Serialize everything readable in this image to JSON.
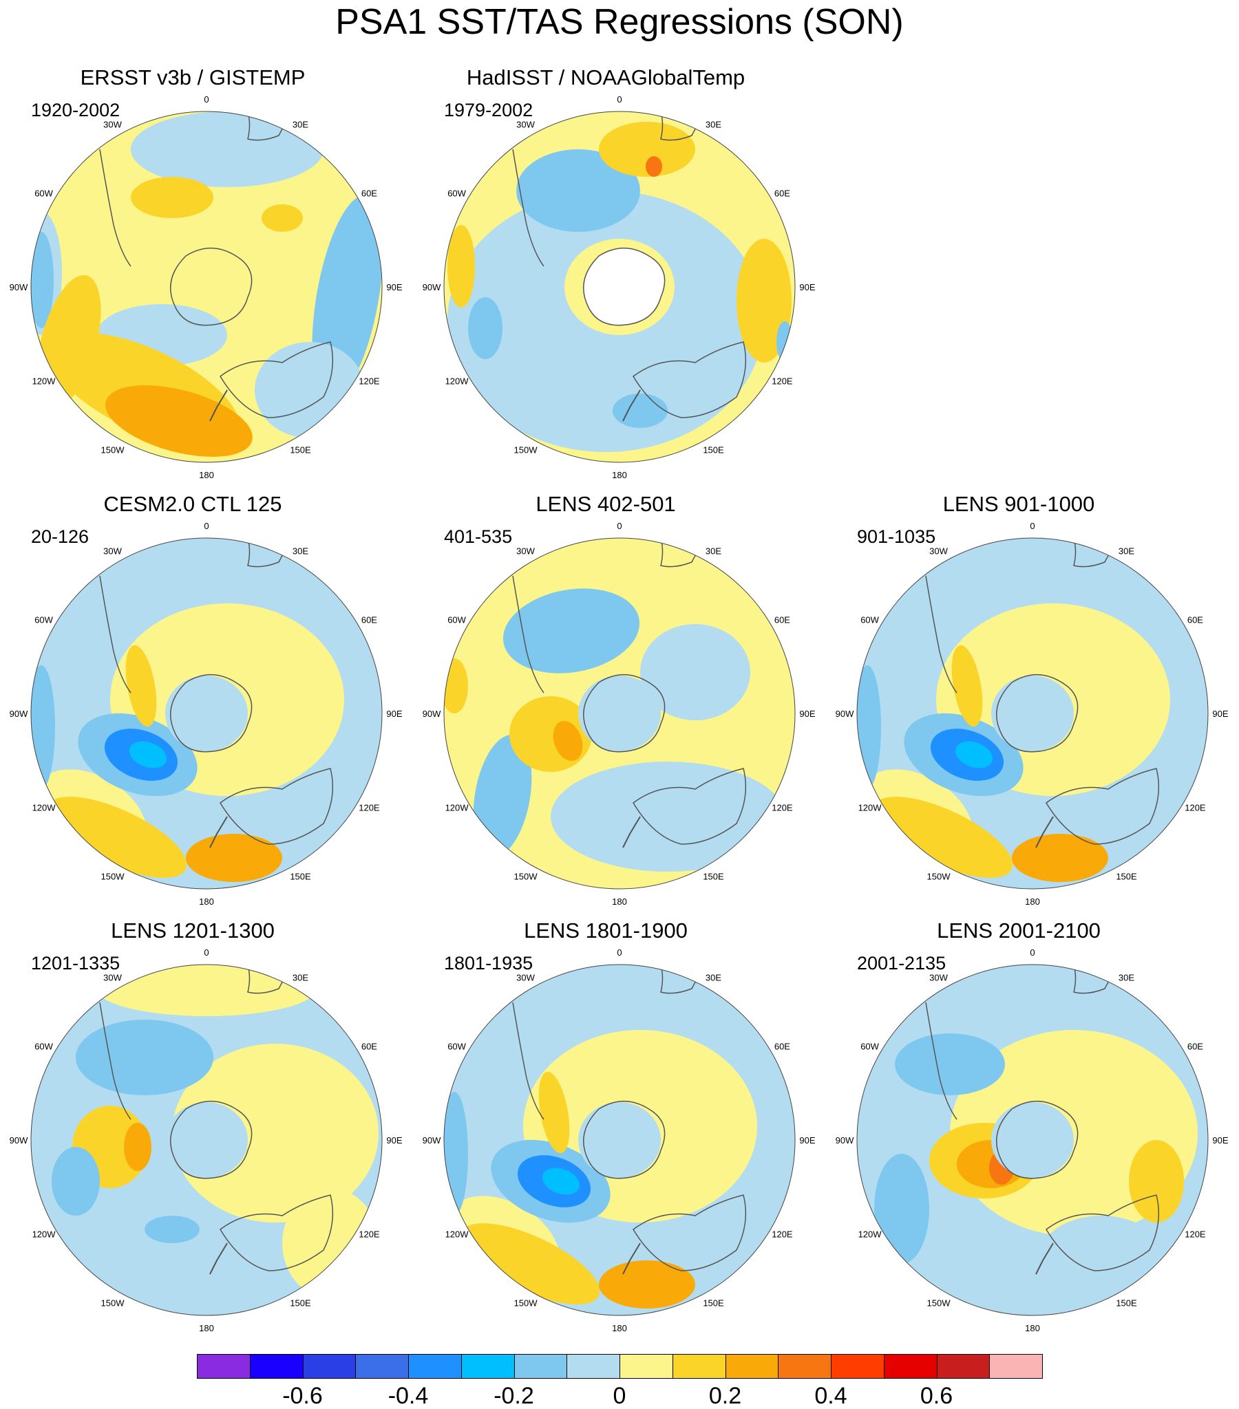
{
  "title": "PSA1 SST/TAS Regressions (SON)",
  "panels": [
    {
      "title": "ERSST v3b / GISTEMP",
      "period": "1920-2002",
      "pattern": "obs1"
    },
    {
      "title": "HadISST / NOAAGlobalTemp",
      "period": "1979-2002",
      "pattern": "obs2"
    },
    {
      "title": "CESM2.0 CTL 125",
      "period": "20-126",
      "pattern": "a"
    },
    {
      "title": "LENS 402-501",
      "period": "401-535",
      "pattern": "b"
    },
    {
      "title": "LENS 901-1000",
      "period": "901-1035",
      "pattern": "a"
    },
    {
      "title": "LENS 1201-1300",
      "period": "1201-1335",
      "pattern": "c"
    },
    {
      "title": "LENS 1801-1900",
      "period": "1801-1935",
      "pattern": "a"
    },
    {
      "title": "LENS 2001-2100",
      "period": "2001-2135",
      "pattern": "d"
    }
  ],
  "longitude_labels": [
    "0",
    "30E",
    "60E",
    "90E",
    "120E",
    "150E",
    "180",
    "150W",
    "120W",
    "90W",
    "60W",
    "30W"
  ],
  "colorbar": {
    "colors": [
      "#8a2be2",
      "#1a00ff",
      "#2b3fe6",
      "#3a6fe9",
      "#1e90ff",
      "#00bfff",
      "#7ec8f0",
      "#b3dcf0",
      "#fbf58c",
      "#fbd42a",
      "#f9aa08",
      "#f87612",
      "#ff3d00",
      "#e60000",
      "#c81e1e",
      "#fbb4b4"
    ],
    "tick_labels": [
      "-0.6",
      "-0.4",
      "-0.2",
      "0",
      "0.2",
      "0.4",
      "0.6"
    ]
  },
  "palette": {
    "light_blue": "#b3dcf0",
    "mid_blue": "#7ec8f0",
    "cyan": "#00bfff",
    "blue": "#1e90ff",
    "yellow": "#fbf58c",
    "gold": "#fbd42a",
    "orange": "#f9aa08",
    "dark_orange": "#f87612",
    "land_line": "#555555"
  }
}
